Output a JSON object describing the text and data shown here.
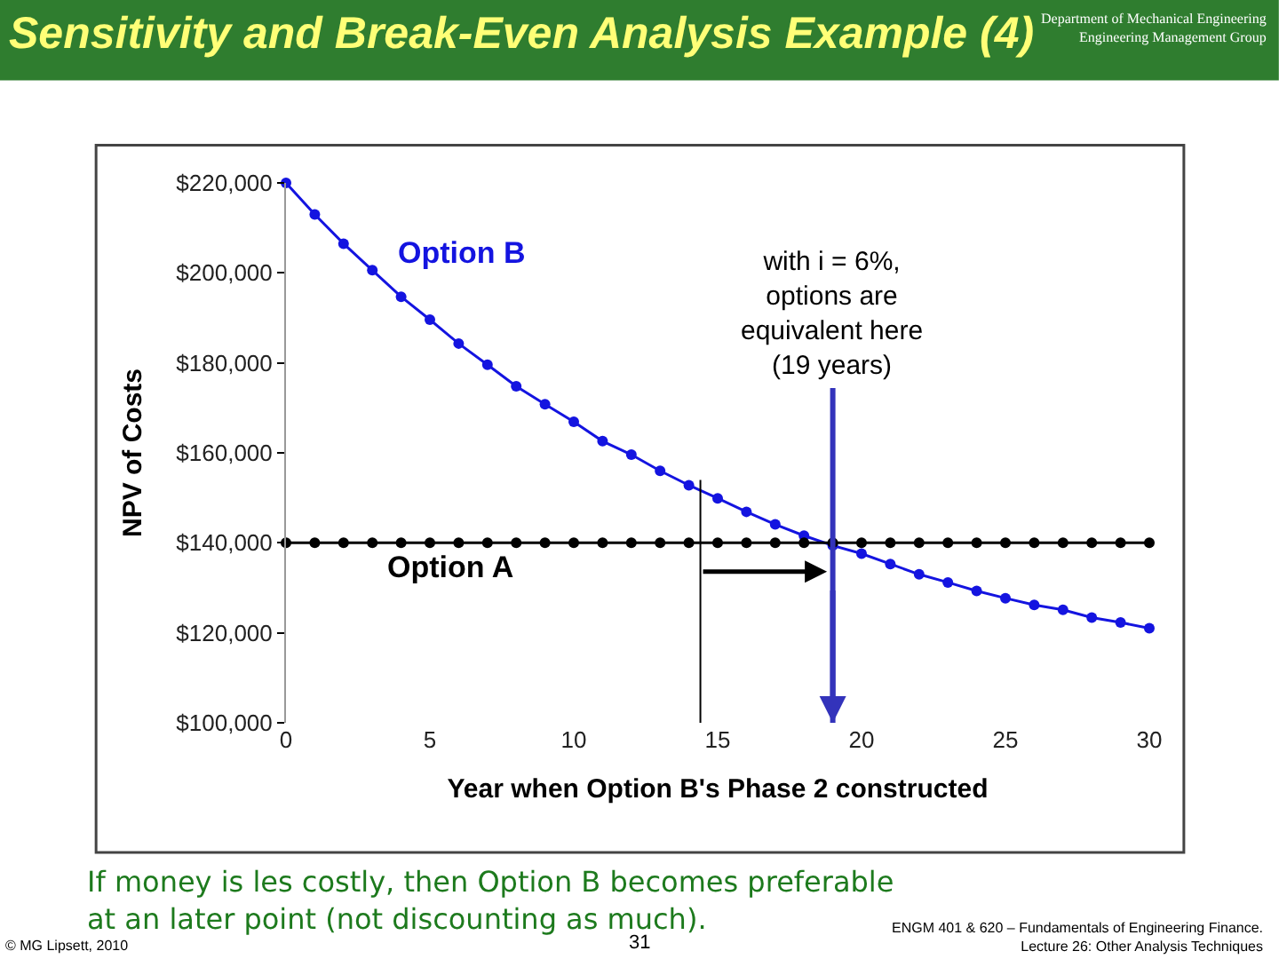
{
  "chart_data": {
    "type": "line",
    "title": "Sensitivity and Break-Even Analysis Example (4)",
    "subtitle": "Department of Mechanical Engineering\nEngineering Management Group",
    "xlabel": "Year when Option B's Phase 2 constructed",
    "ylabel": "NPV of Costs",
    "x": [
      0,
      1,
      2,
      3,
      4,
      5,
      6,
      7,
      8,
      9,
      10,
      11,
      12,
      13,
      14,
      15,
      16,
      17,
      18,
      19,
      20,
      21,
      22,
      23,
      24,
      25,
      26,
      27,
      28,
      29,
      30
    ],
    "series": [
      {
        "name": "Option B",
        "color": "#1414e0",
        "values": [
          220000,
          213000,
          206500,
          200600,
          194700,
          189600,
          184300,
          179600,
          174800,
          170800,
          166900,
          162600,
          159600,
          156000,
          152800,
          149900,
          146900,
          144100,
          141600,
          139400,
          137600,
          135300,
          133000,
          131200,
          129300,
          127700,
          126200,
          125100,
          123400,
          122300,
          121000
        ]
      },
      {
        "name": "Option A",
        "color": "#000000",
        "values": [
          140000,
          140000,
          140000,
          140000,
          140000,
          140000,
          140000,
          140000,
          140000,
          140000,
          140000,
          140000,
          140000,
          140000,
          140000,
          140000,
          140000,
          140000,
          140000,
          140000,
          140000,
          140000,
          140000,
          140000,
          140000,
          140000,
          140000,
          140000,
          140000,
          140000,
          140000
        ]
      }
    ],
    "xlim": [
      0,
      30
    ],
    "xticks": [
      0,
      5,
      10,
      15,
      20,
      25,
      30
    ],
    "ylim": [
      100000,
      220000
    ],
    "yticks": [
      {
        "value": 100000,
        "label": "$100,000"
      },
      {
        "value": 120000,
        "label": "$120,000"
      },
      {
        "value": 140000,
        "label": "$140,000"
      },
      {
        "value": 160000,
        "label": "$160,000"
      },
      {
        "value": 180000,
        "label": "$180,000"
      },
      {
        "value": 200000,
        "label": "$200,000"
      },
      {
        "value": 220000,
        "label": "$220,000"
      }
    ],
    "ref_lines": [
      {
        "axis": "x",
        "value": 19,
        "label": "with i = 6%,\noptions are\nequivalent here\n(19 years)",
        "color": "#3333bb"
      },
      {
        "axis": "x",
        "value": 14.4,
        "color": "#000000"
      }
    ],
    "annotations": [
      "If money is les costly, then Option B becomes preferable\nat an later point (not discounting as much).",
      "© MG Lipsett, 2010",
      "31",
      "ENGM 401 & 620 – Fundamentals of Engineering Finance.\nLecture 26: Other Analysis Techniques"
    ],
    "marker": "circle",
    "line_style": "solid",
    "legend": false
  }
}
